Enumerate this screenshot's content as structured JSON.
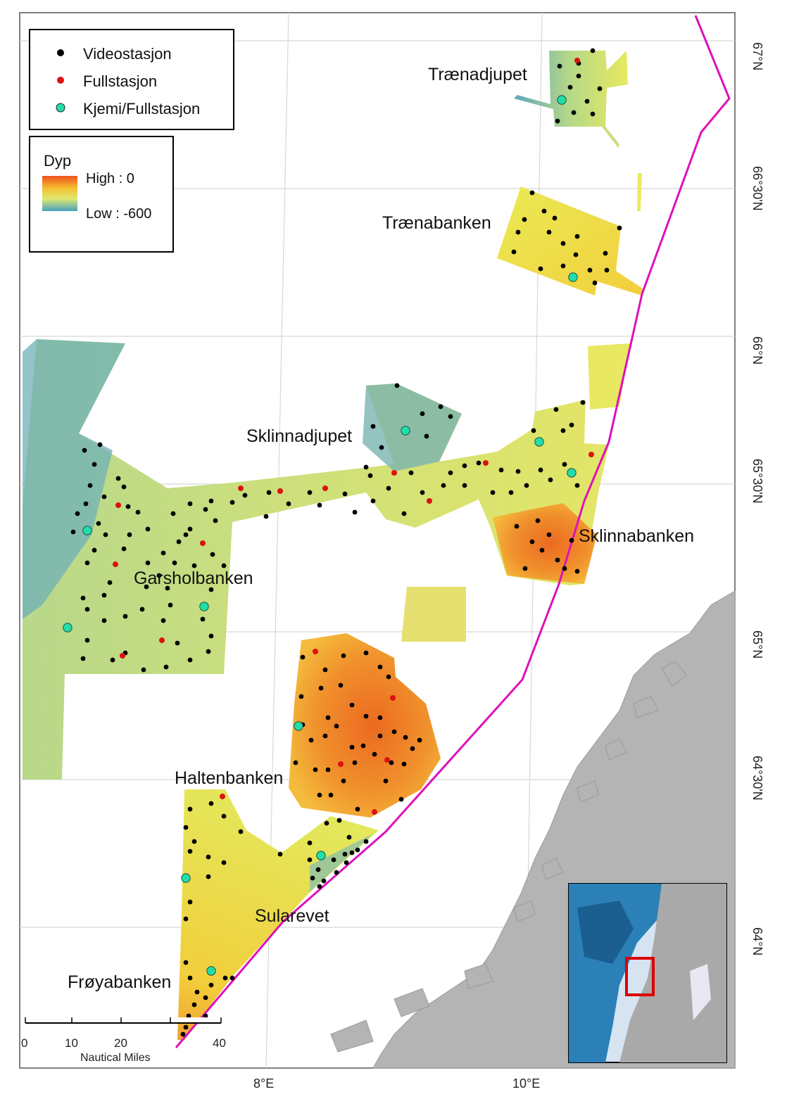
{
  "legend": {
    "stations": [
      {
        "label": "Videostasjon",
        "color": "#000000"
      },
      {
        "label": "Fullstasjon",
        "color": "#dd1111"
      },
      {
        "label": "Kjemi/Fullstasjon",
        "color": "#22ddaa"
      }
    ],
    "depth_title": "Dyp",
    "depth_high": "High : 0",
    "depth_low": "Low : -600"
  },
  "places": [
    "Trænadjupet",
    "Trænabanken",
    "Sklinnadjupet",
    "Sklinnabanken",
    "Garsholbanken",
    "Haltenbanken",
    "Sularevet",
    "Frøyabanken"
  ],
  "lat_labels": [
    "67°N",
    "66°30'N",
    "66°N",
    "65°30'N",
    "65°N",
    "64°30'N",
    "64°N"
  ],
  "lon_labels": [
    "8°E",
    "10°E"
  ],
  "scalebar": {
    "ticks": [
      "0",
      "10",
      "20",
      "40"
    ],
    "unit": "Nautical Miles"
  },
  "colors": {
    "boundary": "#dd11bb",
    "land": "#b4b4b4",
    "inset_frame": "#dd0000"
  }
}
